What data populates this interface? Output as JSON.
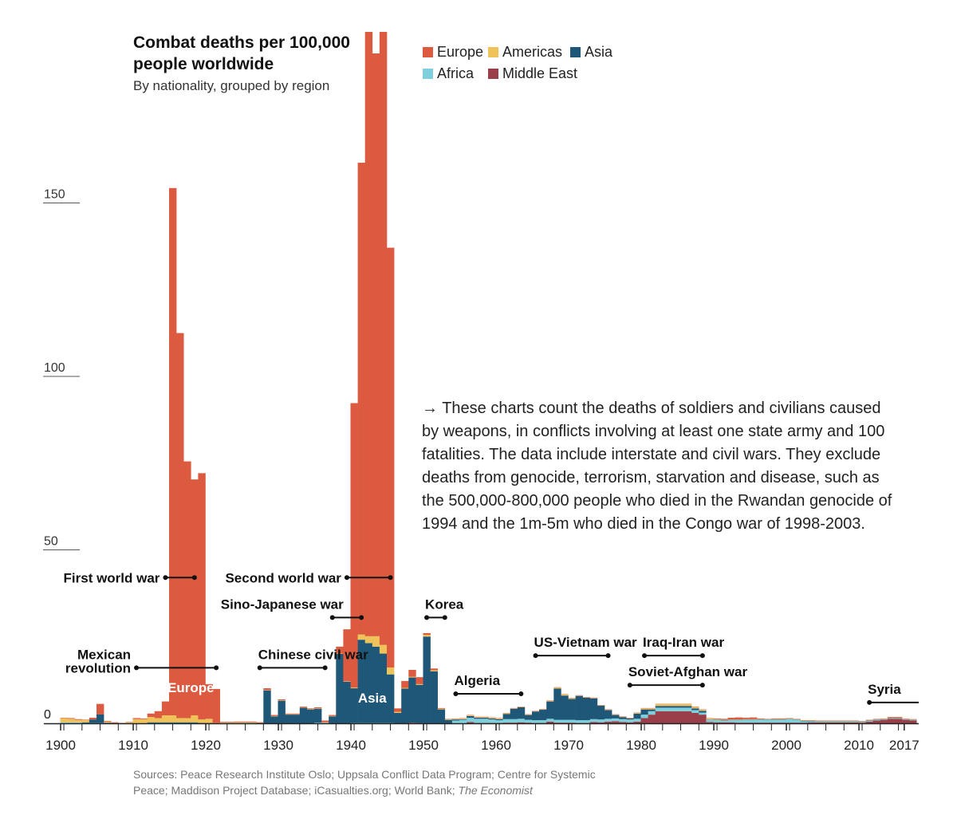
{
  "title": "Combat deaths per 100,000 people worldwide",
  "subtitle": "By nationality, grouped by region",
  "colors": {
    "Europe": "#dc5a3f",
    "Americas": "#efc35a",
    "Asia": "#1e5778",
    "Africa": "#7fcfdc",
    "Middle East": "#9a3f4a",
    "axis": "#222222",
    "grid": "#222222",
    "bar_label": "#ffffff"
  },
  "legend": [
    "Europe",
    "Americas",
    "Asia",
    "Africa",
    "Middle East"
  ],
  "note": "→ These charts count the deaths of soldiers and civilians caused by weapons, in conflicts involving at least one state army and 100 fatalities. The data include interstate and civil wars. They exclude deaths from genocide, terrorism, starvation and disease, such as the 500,000-800,000 people who died in the Rwandan genocide of 1994 and the 1m-5m who died in the Congo war of 1998-2003.",
  "sources_plain": "Sources: Peace Research Institute Oslo; Uppsala Conflict Data Program; Centre for Systemic Peace; Maddison Project Database; iCasualties.org; World Bank; ",
  "sources_italic": "The Economist",
  "chart_data": {
    "type": "area",
    "stacked": true,
    "title": "Combat deaths per 100,000 people worldwide",
    "subtitle": "By nationality, grouped by region",
    "x_range": [
      1900,
      2018
    ],
    "ylim": [
      0,
      200
    ],
    "y_ticks": [
      0,
      50,
      100,
      150
    ],
    "x_ticks": [
      1900,
      1910,
      1920,
      1930,
      1940,
      1950,
      1960,
      1970,
      1980,
      1990,
      2000,
      2010,
      2017
    ],
    "series_order": [
      "Middle East",
      "Africa",
      "Asia",
      "Americas",
      "Europe"
    ],
    "x": [
      1900,
      1901,
      1902,
      1903,
      1904,
      1905,
      1906,
      1907,
      1908,
      1909,
      1910,
      1911,
      1912,
      1913,
      1914,
      1915,
      1916,
      1917,
      1918,
      1919,
      1920,
      1921,
      1922,
      1923,
      1924,
      1925,
      1926,
      1927,
      1928,
      1929,
      1930,
      1931,
      1932,
      1933,
      1934,
      1935,
      1936,
      1937,
      1938,
      1939,
      1940,
      1941,
      1942,
      1943,
      1944,
      1945,
      1946,
      1947,
      1948,
      1949,
      1950,
      1951,
      1952,
      1953,
      1954,
      1955,
      1956,
      1957,
      1958,
      1959,
      1960,
      1961,
      1962,
      1963,
      1964,
      1965,
      1966,
      1967,
      1968,
      1969,
      1970,
      1971,
      1972,
      1973,
      1974,
      1975,
      1976,
      1977,
      1978,
      1979,
      1980,
      1981,
      1982,
      1983,
      1984,
      1985,
      1986,
      1987,
      1988,
      1989,
      1990,
      1991,
      1992,
      1993,
      1994,
      1995,
      1996,
      1997,
      1998,
      1999,
      2000,
      2001,
      2002,
      2003,
      2004,
      2005,
      2006,
      2007,
      2008,
      2009,
      2010,
      2011,
      2012,
      2013,
      2014,
      2015,
      2016,
      2017
    ],
    "series": [
      {
        "name": "Middle East",
        "values": [
          0,
          0,
          0,
          0,
          0,
          0,
          0,
          0,
          0,
          0,
          0,
          0,
          0,
          0,
          0,
          0,
          0,
          0,
          0,
          0,
          0,
          0,
          0,
          0,
          0,
          0,
          0,
          0,
          0,
          0,
          0,
          0,
          0,
          0,
          0,
          0,
          0,
          0,
          0,
          0,
          0,
          0,
          0,
          0,
          0,
          0,
          0,
          0,
          0.2,
          0.1,
          0,
          0,
          0,
          0,
          0,
          0,
          0.4,
          0.1,
          0.1,
          0.1,
          0.1,
          0.2,
          0.2,
          0.3,
          0.2,
          0.1,
          0.1,
          0.5,
          0.2,
          0.2,
          0.2,
          0.1,
          0.1,
          0.4,
          0.3,
          0.5,
          0.6,
          0.4,
          0.3,
          0.5,
          1.5,
          2.5,
          3.5,
          3.5,
          3.5,
          3.5,
          3.5,
          3,
          2.5,
          0.4,
          0.3,
          0.3,
          0.3,
          0.2,
          0.2,
          0.2,
          0.2,
          0.2,
          0.2,
          0.2,
          0.2,
          0.2,
          0.2,
          0.3,
          0.3,
          0.3,
          0.3,
          0.3,
          0.3,
          0.3,
          0.2,
          0.5,
          0.8,
          1,
          1.3,
          1.3,
          1,
          0.8
        ]
      },
      {
        "name": "Africa",
        "values": [
          0.3,
          0.3,
          0.3,
          0.1,
          0.1,
          0.1,
          0.1,
          0.1,
          0,
          0,
          0,
          0,
          0.1,
          0.1,
          0.1,
          0.1,
          0.1,
          0.1,
          0.1,
          0,
          0,
          0,
          0,
          0,
          0,
          0.1,
          0.1,
          0,
          0,
          0,
          0,
          0,
          0,
          0,
          0,
          0.2,
          0.2,
          0,
          0,
          0,
          0.1,
          0.1,
          0.1,
          0.1,
          0.1,
          0.1,
          0,
          0,
          0,
          0,
          0,
          0,
          0,
          0,
          0.8,
          1,
          1.2,
          1.2,
          1.2,
          1,
          0.8,
          1,
          1,
          1,
          0.8,
          0.8,
          0.8,
          0.8,
          0.8,
          0.8,
          0.8,
          0.8,
          0.8,
          0.8,
          0.8,
          0.8,
          0.8,
          0.8,
          0.8,
          0.8,
          1,
          1,
          1,
          1,
          1,
          1,
          1,
          0.8,
          0.6,
          0.6,
          0.6,
          0.5,
          0.6,
          0.7,
          0.8,
          0.8,
          0.8,
          0.8,
          0.8,
          0.8,
          1,
          0.8,
          0.4,
          0.3,
          0.2,
          0.2,
          0.2,
          0.2,
          0.2,
          0.2,
          0.2,
          0.2,
          0.2,
          0.1,
          0.1,
          0.1,
          0.1,
          0.1
        ]
      },
      {
        "name": "Asia",
        "values": [
          0,
          0,
          0,
          0.2,
          1,
          2.5,
          0.1,
          0,
          0,
          0,
          0,
          0,
          0.2,
          0.2,
          0.2,
          0.2,
          0.2,
          0.2,
          0.2,
          0.1,
          0.1,
          0,
          0,
          0,
          0,
          0,
          0,
          0,
          9.5,
          2,
          6.5,
          2.5,
          2.5,
          4.5,
          4,
          4,
          0,
          2,
          20,
          12,
          10,
          24,
          23,
          22,
          20,
          14,
          3,
          10,
          13,
          11,
          25,
          15,
          4,
          1,
          0.3,
          0.2,
          0.5,
          0.3,
          0.3,
          0.3,
          0.3,
          1.5,
          3,
          3.3,
          1.4,
          2.5,
          3,
          5,
          9,
          7,
          6,
          7,
          6.5,
          6,
          4,
          2.5,
          1,
          0.6,
          0.3,
          1.5,
          1.5,
          0.5,
          0.5,
          0.5,
          0.5,
          0.5,
          0.5,
          0.5,
          0.5,
          0.1,
          0.1,
          0.1,
          0.1,
          0.1,
          0.1,
          0.1,
          0.1,
          0.1,
          0.1,
          0.1,
          0.1,
          0.1,
          0.1,
          0.1,
          0.1,
          0.1,
          0.1,
          0.1,
          0.1,
          0.1,
          0.1,
          0.1,
          0.1,
          0.1,
          0.1,
          0.1,
          0.1,
          0.1
        ]
      },
      {
        "name": "Americas",
        "values": [
          1.2,
          1,
          0.7,
          0.7,
          0,
          0,
          0.3,
          0,
          0,
          0.3,
          1.2,
          1.2,
          1.5,
          1.2,
          2,
          2,
          1.2,
          1.2,
          2,
          1,
          1.2,
          0.1,
          0.2,
          0.2,
          0.3,
          0.2,
          0.2,
          0.1,
          0.1,
          0.1,
          0.1,
          0.1,
          0.1,
          0.1,
          0.1,
          0.1,
          0.1,
          0.1,
          0.1,
          0.1,
          0.2,
          1.5,
          2,
          3,
          2.5,
          2,
          0.3,
          0.2,
          0.2,
          0.2,
          0.5,
          0.3,
          0.2,
          0.2,
          0.2,
          0.2,
          0.2,
          0.2,
          0.2,
          0.2,
          0.2,
          0.2,
          0.1,
          0.1,
          0.1,
          0.1,
          0.1,
          0.2,
          0.3,
          0.3,
          0.2,
          0.1,
          0.1,
          0.1,
          0.1,
          0.1,
          0.1,
          0.1,
          0.1,
          0.2,
          0.3,
          0.3,
          0.5,
          0.5,
          0.5,
          0.5,
          0.5,
          0.4,
          0.3,
          0.3,
          0.2,
          0.1,
          0.1,
          0.1,
          0.1,
          0.1,
          0.1,
          0.1,
          0.1,
          0.1,
          0.1,
          0.1,
          0.1,
          0.1,
          0.1,
          0.1,
          0.1,
          0.1,
          0.1,
          0.1,
          0.1,
          0.1,
          0.1,
          0.1,
          0.1,
          0.1,
          0.1,
          0.1
        ]
      },
      {
        "name": "Europe",
        "values": [
          0.1,
          0.2,
          0.2,
          0.1,
          0.5,
          3,
          0.2,
          0.2,
          0.1,
          0.1,
          0.3,
          0.2,
          1,
          2,
          4,
          152,
          111,
          74,
          68,
          71,
          10,
          9.8,
          0.2,
          0.2,
          0.2,
          0.2,
          0.2,
          0.2,
          0.5,
          0.3,
          0.3,
          0.2,
          0.2,
          0.2,
          0.2,
          0.3,
          0.5,
          0.3,
          2,
          15,
          82,
          136,
          177,
          168,
          177,
          121,
          1,
          2,
          2,
          2,
          0.5,
          0.5,
          0.2,
          0.1,
          0.1,
          0.1,
          0.1,
          0.1,
          0.1,
          0.1,
          0.1,
          0.1,
          0.1,
          0.1,
          0.1,
          0.1,
          0.1,
          0.1,
          0.1,
          0.1,
          0.1,
          0.1,
          0.1,
          0.1,
          0.1,
          0.1,
          0.1,
          0.1,
          0.1,
          0.1,
          0.1,
          0.1,
          0.1,
          0.1,
          0.1,
          0.1,
          0.1,
          0.1,
          0.1,
          0.1,
          0.2,
          0.3,
          0.5,
          0.6,
          0.4,
          0.5,
          0.2,
          0.1,
          0.2,
          0.2,
          0.1,
          0.1,
          0.1,
          0.1,
          0.1,
          0.1,
          0.1,
          0.1,
          0.1,
          0.1,
          0.1,
          0.1,
          0.1,
          0.1,
          0.2,
          0.2,
          0.1,
          0.1
        ]
      }
    ],
    "bar_labels": [
      {
        "text": "Europe",
        "x": 1918,
        "y": 9
      },
      {
        "text": "Asia",
        "x": 1943,
        "y": 6
      }
    ],
    "annotations": [
      {
        "lines": [
          "First world war"
        ],
        "start": 1914,
        "end": 1918,
        "y": 42,
        "label_side": "left"
      },
      {
        "lines": [
          "Second world war"
        ],
        "start": 1939,
        "end": 1945,
        "y": 42,
        "label_side": "left"
      },
      {
        "lines": [
          "Sino-Japanese war"
        ],
        "start": 1937,
        "end": 1941,
        "y": 30.5,
        "label_side": "above-left"
      },
      {
        "lines": [
          "Korea"
        ],
        "start": 1950,
        "end": 1952.5,
        "y": 30.5,
        "label_side": "above"
      },
      {
        "lines": [
          "Mexican",
          "revolution"
        ],
        "start": 1910,
        "end": 1921,
        "y": 16,
        "label_side": "left"
      },
      {
        "lines": [
          "Chinese civil war"
        ],
        "start": 1927,
        "end": 1936,
        "y": 16,
        "label_side": "above"
      },
      {
        "lines": [
          "US-Vietnam war"
        ],
        "start": 1965,
        "end": 1975,
        "y": 19.5,
        "label_side": "above"
      },
      {
        "lines": [
          "Iraq-Iran war"
        ],
        "start": 1980,
        "end": 1988,
        "y": 19.5,
        "label_side": "above"
      },
      {
        "lines": [
          "Soviet-Afghan war"
        ],
        "start": 1978,
        "end": 1988,
        "y": 11,
        "label_side": "above"
      },
      {
        "lines": [
          "Algeria"
        ],
        "start": 1954,
        "end": 1963,
        "y": 8.5,
        "label_side": "above"
      },
      {
        "lines": [
          "Syria"
        ],
        "start": 2011,
        "end": 2018,
        "y": 6,
        "label_side": "above",
        "open_end": true
      }
    ]
  }
}
